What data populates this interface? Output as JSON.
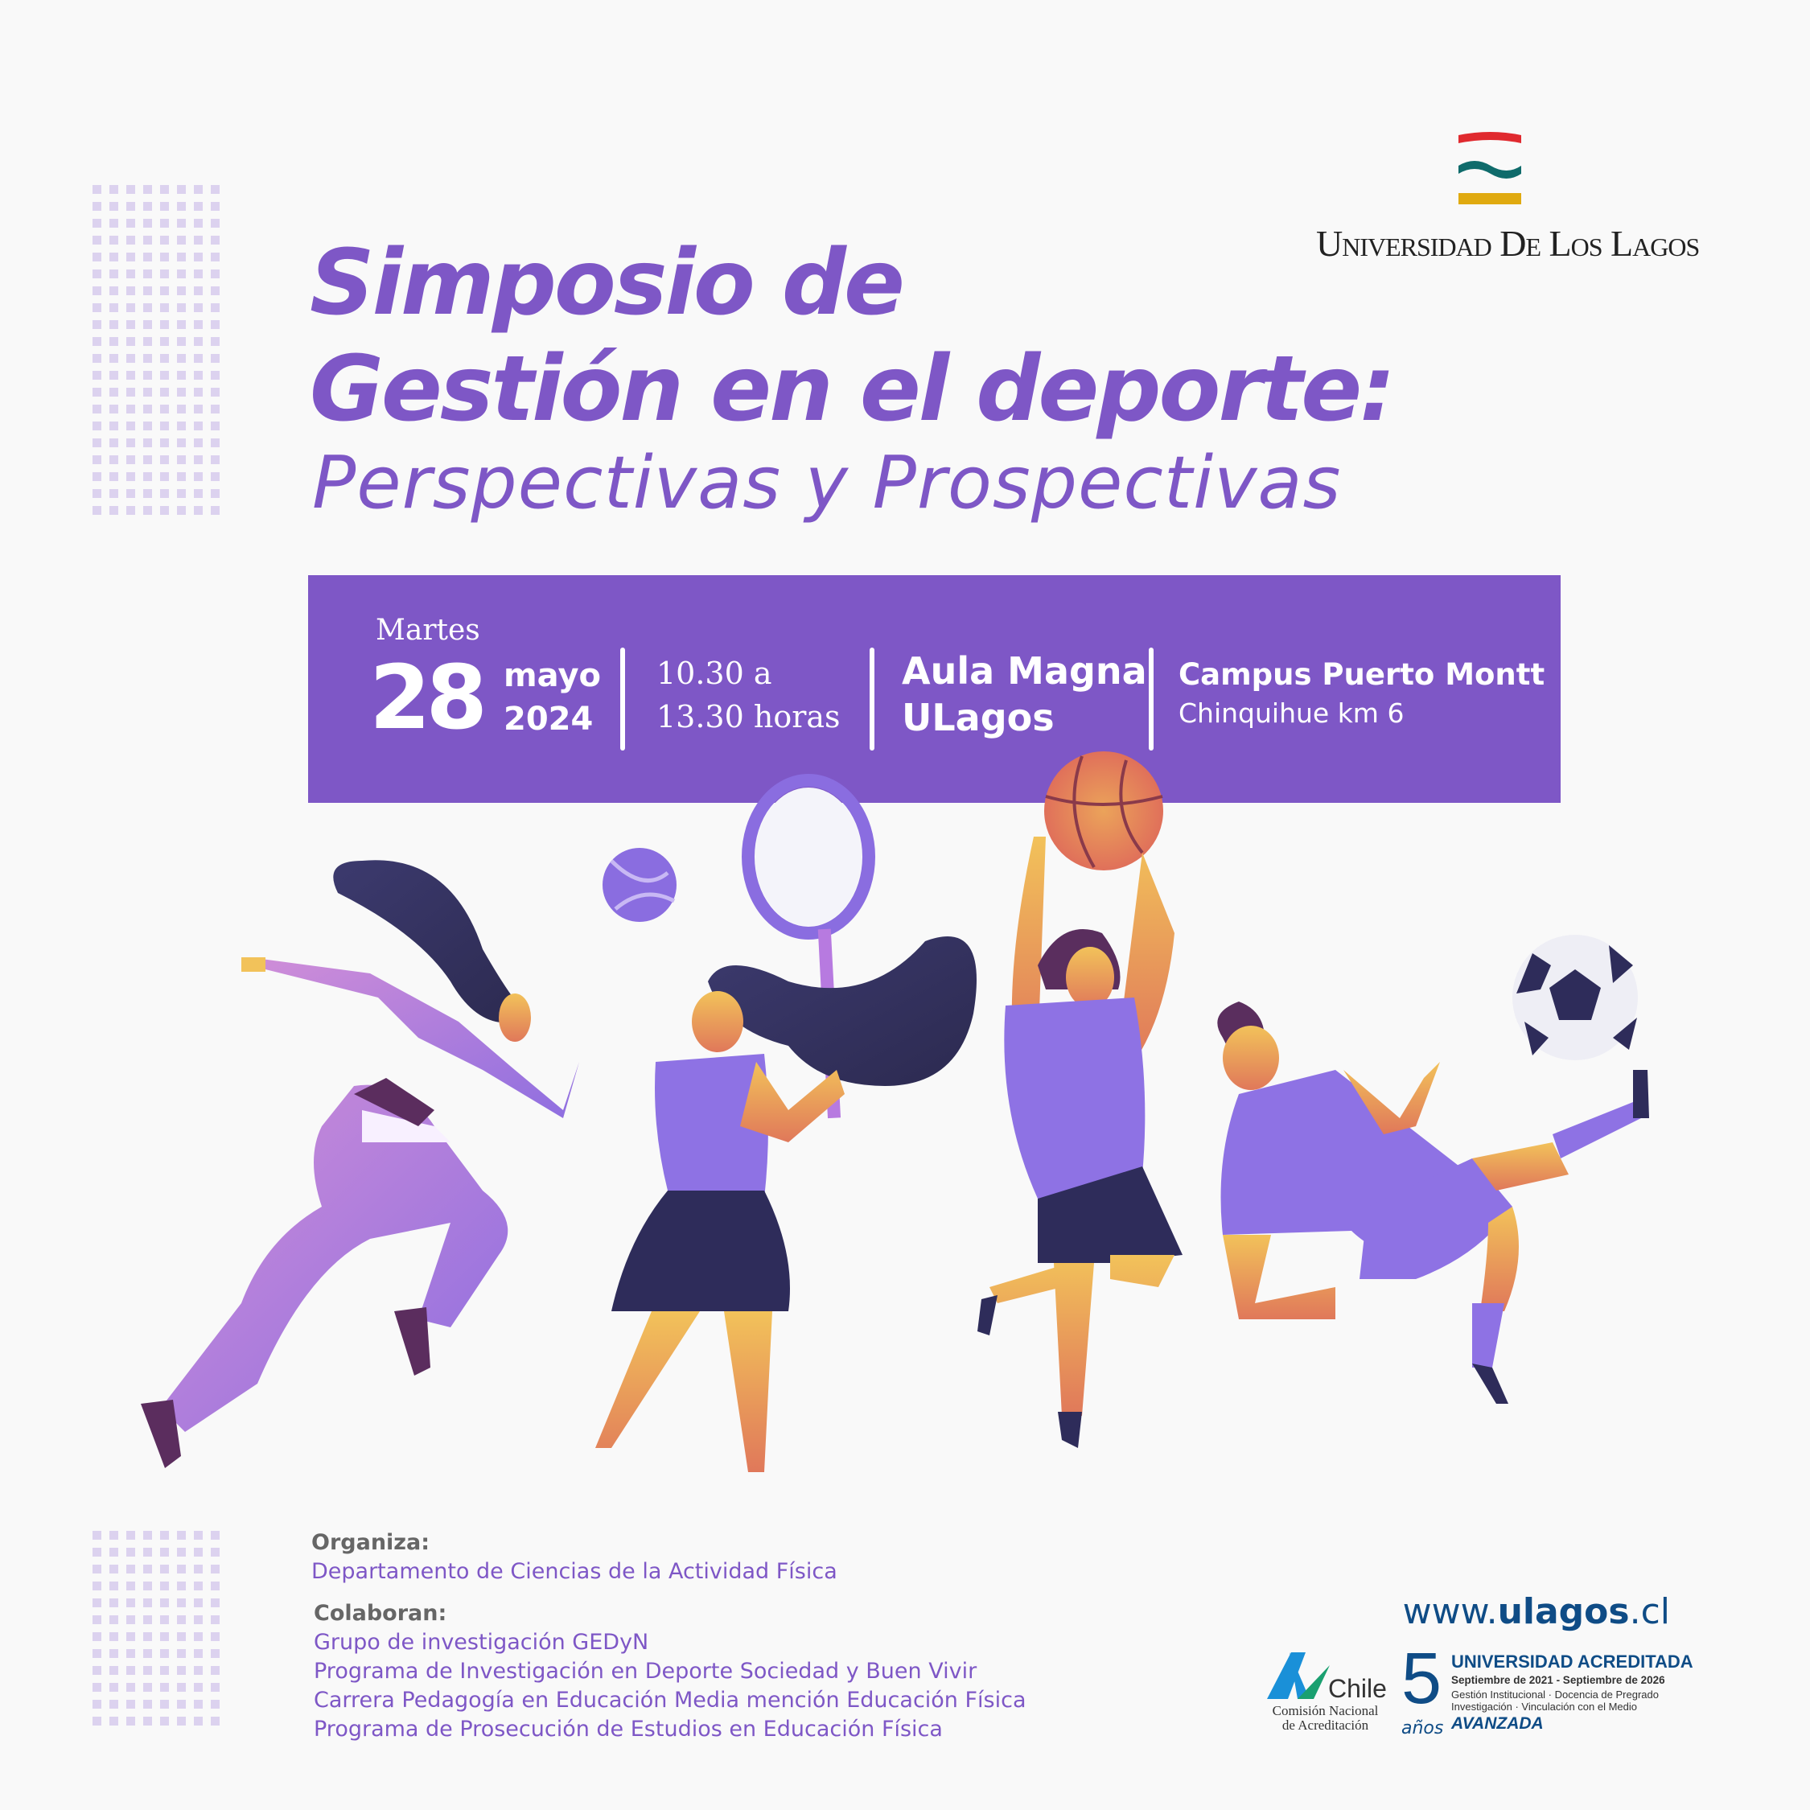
{
  "header": {
    "title_line1": "Simposio de",
    "title_line2": "Gestión en el deporte:",
    "subtitle": "Perspectivas y Prospectivas",
    "logo_text": "Universidad De Los Lagos",
    "logo_colors": [
      "#e02a2f",
      "#0f6b6b",
      "#e0aa10"
    ]
  },
  "event": {
    "weekday": "Martes",
    "day": "28",
    "month": "mayo",
    "year": "2024",
    "time_start": "10.30 a",
    "time_end": "13.30 horas",
    "venue_line1": "Aula Magna",
    "venue_line2": "ULagos",
    "campus": "Campus Puerto Montt",
    "address": "Chinquihue km 6",
    "banner_color": "#7e57c6"
  },
  "footer": {
    "organiza_label": "Organiza:",
    "organiza": "Departamento de Ciencias de la Actividad Física",
    "colaboran_label": "Colaboran:",
    "colaboran": [
      "Grupo de investigación GEDyN",
      "Programa de Investigación en Deporte Sociedad y Buen Vivir",
      "Carrera Pedagogía en Educación Media mención Educación Física",
      "Programa de Prosecución de Estudios en Educación Física"
    ],
    "website_prefix": "www.",
    "website_bold": "ulagos",
    "website_suffix": ".cl",
    "cna_logo": "Chile",
    "cna_name_1": "Comisión Nacional",
    "cna_name_2": "de Acreditación",
    "years": "5",
    "years_label": "años",
    "accr_title": "UNIVERSIDAD ACREDITADA",
    "accr_period": "Septiembre de 2021 - Septiembre de 2026",
    "accr_areas_1": "Gestión Institucional · Docencia de Pregrado",
    "accr_areas_2": "Investigación · Vinculación con el Medio",
    "accr_level": "AVANZADA"
  }
}
